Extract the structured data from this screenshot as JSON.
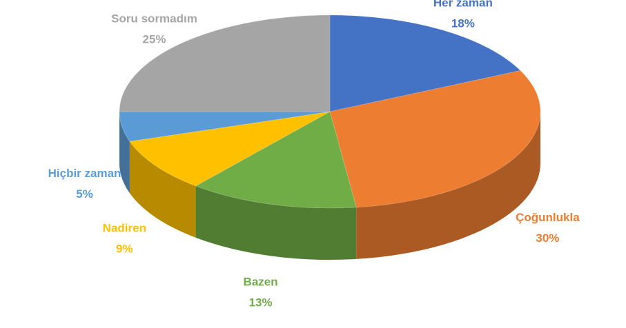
{
  "chart_data": {
    "type": "pie3d",
    "categories": [
      "Her zaman",
      "Çoğunlukla",
      "Bazen",
      "Nadiren",
      "Hiçbir zaman",
      "Soru sormadım"
    ],
    "values": [
      18,
      30,
      13,
      9,
      5,
      25
    ],
    "value_labels": [
      "18%",
      "30%",
      "13%",
      "9%",
      "5%",
      "25%"
    ],
    "colors": [
      "#4472c4",
      "#ed7d31",
      "#70ad47",
      "#ffc000",
      "#5b9bd5",
      "#a5a5a5"
    ]
  }
}
